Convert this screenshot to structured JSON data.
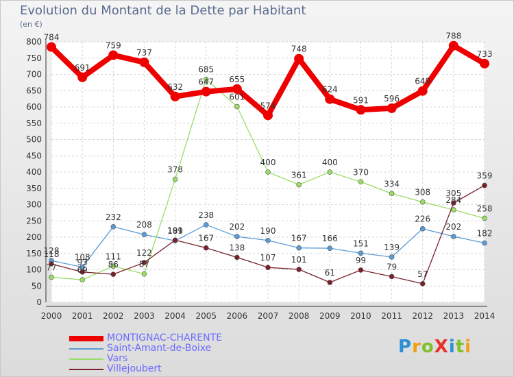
{
  "header": {
    "title": "Evolution du Montant de la Dette par Habitant",
    "unit": "(en €)"
  },
  "logo": {
    "text": "ProXiti",
    "colors": [
      "#2a8fd6",
      "#f0a010",
      "#7fc12a",
      "#e8302a",
      "#2a8fd6",
      "#7fc12a",
      "#f0a010"
    ]
  },
  "chart_data": {
    "type": "line",
    "title": "Evolution du Montant de la Dette par Habitant",
    "ylabel": "(en €)",
    "xlabel": "",
    "x": [
      "2000",
      "2001",
      "2002",
      "2003",
      "2004",
      "2005",
      "2006",
      "2007",
      "2008",
      "2009",
      "2010",
      "2011",
      "2012",
      "2013",
      "2014"
    ],
    "ylim": [
      0,
      800
    ],
    "yticks": [
      0,
      50,
      100,
      150,
      200,
      250,
      300,
      350,
      400,
      450,
      500,
      550,
      600,
      650,
      700,
      750,
      800
    ],
    "grid": true,
    "legend_position": "bottom-left",
    "series": [
      {
        "name": "MONTIGNAC-CHARENTE",
        "color": "#ee0000",
        "values": [
          784,
          691,
          759,
          737,
          632,
          647,
          655,
          574,
          748,
          624,
          591,
          596,
          649,
          788,
          733
        ]
      },
      {
        "name": "Saint-Amant-de-Boixe",
        "color": "#5b9bd5",
        "values": [
          128,
          108,
          232,
          208,
          189,
          238,
          202,
          190,
          167,
          166,
          151,
          139,
          226,
          202,
          182
        ]
      },
      {
        "name": "Vars",
        "color": "#99dd66",
        "values": [
          77,
          69,
          111,
          87,
          378,
          685,
          601,
          400,
          361,
          400,
          370,
          334,
          308,
          284,
          258
        ]
      },
      {
        "name": "Villejoubert",
        "color": "#7a1f2a",
        "values": [
          118,
          93,
          86,
          122,
          191,
          167,
          138,
          107,
          101,
          61,
          99,
          79,
          57,
          305,
          359
        ]
      }
    ]
  }
}
